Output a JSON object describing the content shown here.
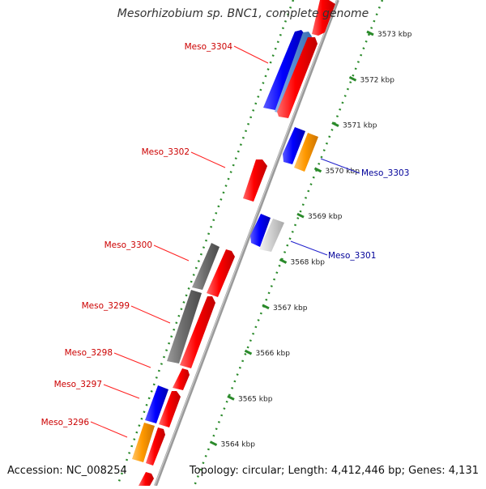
{
  "title": "Mesorhizobium sp. BNC1, complete genome",
  "footer": {
    "accession": "Accession: NC_008254",
    "summary": "Topology: circular; Length: 4,412,446 bp; Genes: 4,131"
  },
  "colors": {
    "red": "#f20000",
    "blue": "#0000ff",
    "orange": "#ff9900",
    "gray": "#6e6e6e",
    "lightgray": "#cfcfcf",
    "steelblue": "#5b8fd6",
    "dotted": "#2a8a2a",
    "tick": "#2a8a2a",
    "left_label": "#cc0000",
    "right_label": "#000099"
  },
  "scale": {
    "unit": "kbp",
    "ticks": [
      {
        "label": "3573 kbp"
      },
      {
        "label": "3572 kbp"
      },
      {
        "label": "3571 kbp"
      },
      {
        "label": "3570 kbp"
      },
      {
        "label": "3569 kbp"
      },
      {
        "label": "3568 kbp"
      },
      {
        "label": "3567 kbp"
      },
      {
        "label": "3566 kbp"
      },
      {
        "label": "3565 kbp"
      },
      {
        "label": "3564 kbp"
      }
    ]
  },
  "genes": {
    "left_labels": [
      "Meso_3304",
      "Meso_3302",
      "Meso_3300",
      "Meso_3299",
      "Meso_3298",
      "Meso_3297",
      "Meso_3296"
    ],
    "right_labels": [
      "Meso_3303",
      "Meso_3301"
    ]
  }
}
